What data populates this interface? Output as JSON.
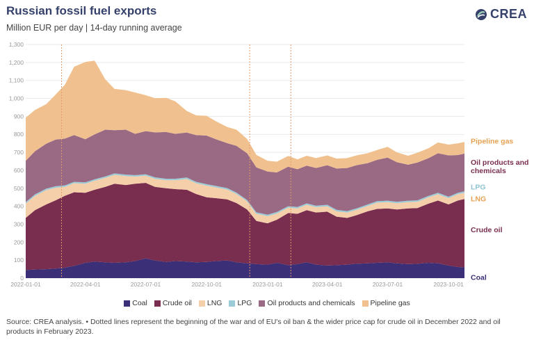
{
  "header": {
    "title": "Russian fossil fuel exports",
    "subtitle": "Million EUR per day | 14-day running average",
    "logo_text": "CREA"
  },
  "source_note": "Source: CREA analysis. • Dotted lines represent the beginning of the war and of EU's oil ban & the wider price cap for crude oil in December 2022 and oil products in February 2023.",
  "chart_data": {
    "type": "area",
    "stacked": true,
    "title": "Russian fossil fuel exports",
    "subtitle": "Million EUR per day | 14-day running average",
    "ylabel": "",
    "ylim": [
      0,
      1300
    ],
    "yticks": [
      0,
      100,
      200,
      300,
      400,
      500,
      600,
      700,
      800,
      900,
      1000,
      1100,
      1200,
      1300
    ],
    "ytick_labels": [
      "0",
      "100",
      "200",
      "300",
      "400",
      "500",
      "600",
      "700",
      "800",
      "900",
      "1,000",
      "1,100",
      "1,200",
      "1,300"
    ],
    "xlim": [
      "2022-01-01",
      "2023-10-25"
    ],
    "xticks": [
      "2022-01-01",
      "2022-04-01",
      "2022-07-01",
      "2022-10-01",
      "2023-01-01",
      "2023-04-01",
      "2023-07-01",
      "2023-10-01"
    ],
    "grid": true,
    "legend_position": "bottom",
    "reference_lines": [
      "2022-02-24",
      "2022-12-05",
      "2023-02-05"
    ],
    "dates": [
      "2022-01-01",
      "2022-01-15",
      "2022-02-01",
      "2022-02-15",
      "2022-03-01",
      "2022-03-15",
      "2022-04-01",
      "2022-04-15",
      "2022-05-01",
      "2022-05-15",
      "2022-06-01",
      "2022-06-15",
      "2022-07-01",
      "2022-07-15",
      "2022-08-01",
      "2022-08-15",
      "2022-09-01",
      "2022-09-15",
      "2022-10-01",
      "2022-10-15",
      "2022-11-01",
      "2022-11-15",
      "2022-12-01",
      "2022-12-15",
      "2023-01-01",
      "2023-01-15",
      "2023-02-01",
      "2023-02-15",
      "2023-03-01",
      "2023-03-15",
      "2023-04-01",
      "2023-04-15",
      "2023-05-01",
      "2023-05-15",
      "2023-06-01",
      "2023-06-15",
      "2023-07-01",
      "2023-07-15",
      "2023-08-01",
      "2023-08-15",
      "2023-09-01",
      "2023-09-15",
      "2023-10-01",
      "2023-10-15",
      "2023-10-25"
    ],
    "series": [
      {
        "name": "Coal",
        "color": "#3b2f77",
        "values": [
          45,
          48,
          50,
          53,
          58,
          68,
          85,
          92,
          88,
          85,
          88,
          95,
          110,
          98,
          90,
          95,
          92,
          88,
          90,
          95,
          98,
          88,
          82,
          78,
          75,
          85,
          72,
          78,
          88,
          75,
          70,
          72,
          75,
          80,
          82,
          85,
          88,
          82,
          78,
          80,
          85,
          82,
          70,
          62,
          60
        ]
      },
      {
        "name": "Crude oil",
        "color": "#7a2e4f",
        "values": [
          290,
          330,
          360,
          380,
          400,
          410,
          390,
          400,
          420,
          440,
          430,
          430,
          420,
          410,
          410,
          400,
          400,
          380,
          360,
          350,
          340,
          330,
          300,
          240,
          230,
          240,
          290,
          280,
          290,
          290,
          300,
          270,
          260,
          270,
          290,
          300,
          300,
          300,
          310,
          310,
          330,
          350,
          340,
          370,
          380
        ]
      },
      {
        "name": "LNG",
        "color": "#f5ceaa",
        "values": [
          80,
          80,
          80,
          70,
          50,
          50,
          50,
          50,
          50,
          50,
          50,
          40,
          40,
          45,
          45,
          50,
          60,
          60,
          65,
          60,
          55,
          50,
          45,
          40,
          40,
          35,
          30,
          30,
          30,
          30,
          30,
          30,
          30,
          30,
          30,
          35,
          35,
          35,
          35,
          35,
          35,
          35,
          35,
          35,
          35
        ]
      },
      {
        "name": "LPG",
        "color": "#9ccbd8",
        "values": [
          8,
          8,
          8,
          8,
          8,
          8,
          8,
          8,
          8,
          8,
          8,
          8,
          8,
          8,
          8,
          8,
          8,
          8,
          8,
          8,
          8,
          8,
          8,
          8,
          8,
          8,
          8,
          8,
          8,
          8,
          8,
          8,
          8,
          8,
          8,
          8,
          8,
          8,
          8,
          8,
          8,
          8,
          8,
          8,
          8
        ]
      },
      {
        "name": "Oil products and chemicals",
        "color": "#9a6a85",
        "values": [
          230,
          240,
          250,
          260,
          260,
          260,
          240,
          250,
          260,
          240,
          250,
          230,
          240,
          250,
          260,
          250,
          250,
          260,
          270,
          260,
          250,
          260,
          260,
          250,
          240,
          220,
          220,
          210,
          210,
          210,
          220,
          230,
          240,
          240,
          230,
          230,
          240,
          220,
          200,
          210,
          210,
          220,
          230,
          210,
          210
        ]
      },
      {
        "name": "Pipeline gas",
        "color": "#f0c18e",
        "values": [
          240,
          230,
          220,
          250,
          300,
          380,
          430,
          410,
          280,
          230,
          220,
          230,
          200,
          190,
          190,
          180,
          120,
          110,
          110,
          100,
          90,
          90,
          80,
          70,
          60,
          60,
          60,
          55,
          55,
          55,
          55,
          55,
          55,
          55,
          55,
          55,
          60,
          55,
          50,
          55,
          55,
          60,
          60,
          65,
          65
        ]
      }
    ],
    "right_labels": [
      {
        "text": "Pipeline gas",
        "color": "#e5a254"
      },
      {
        "text": "Oil products and chemicals",
        "color": "#7a2e4f"
      },
      {
        "text": "LPG",
        "color": "#8fc3d3"
      },
      {
        "text": "LNG",
        "color": "#e5a254"
      },
      {
        "text": "Crude oil",
        "color": "#7a2e4f"
      },
      {
        "text": "Coal",
        "color": "#3b2f77"
      }
    ]
  }
}
